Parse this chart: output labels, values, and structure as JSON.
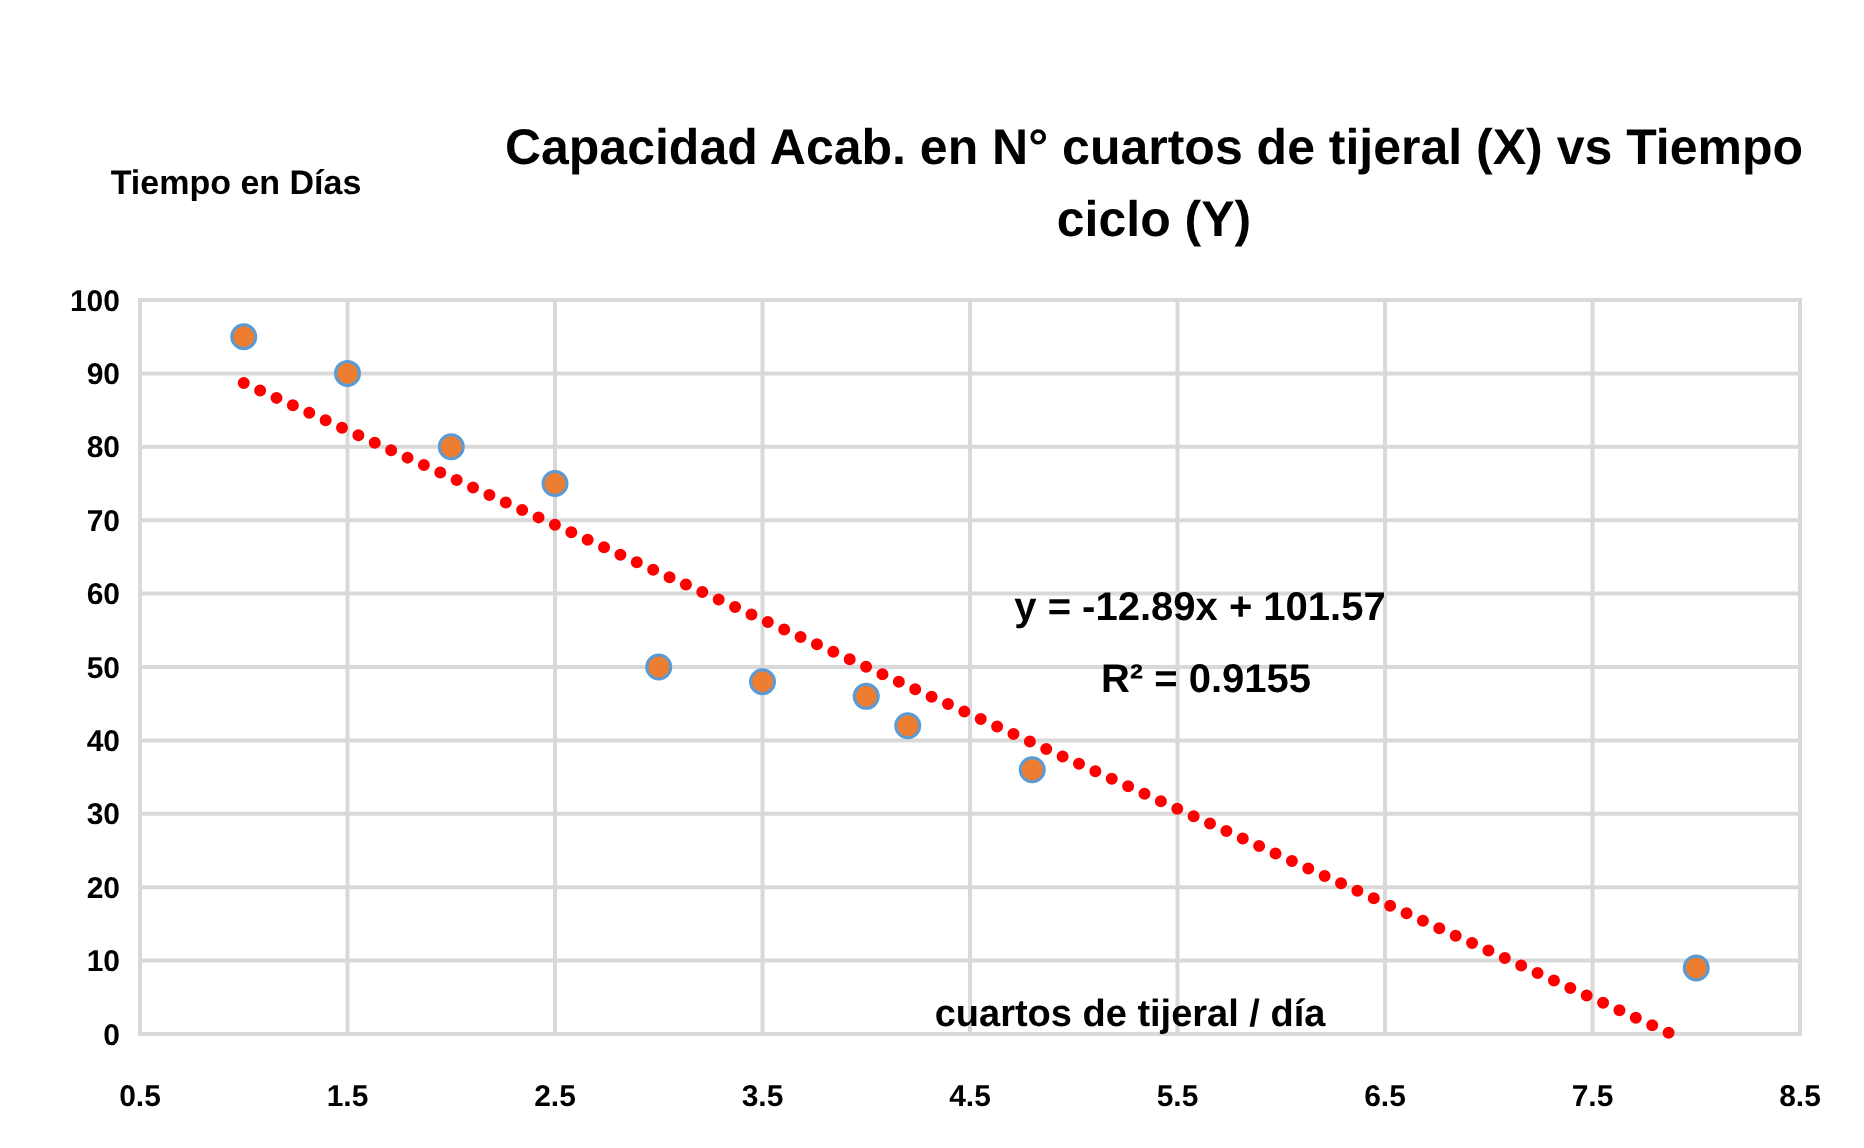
{
  "chart_data": {
    "type": "scatter",
    "title": "Capacidad Acab. en N° cuartos de tijeral (X) vs Tiempo ciclo (Y)",
    "xlabel": "cuartos de tijeral / día",
    "ylabel": "Tiempo en Días",
    "annotations": [
      "y = -12.89x + 101.57",
      "R² = 0.9155"
    ],
    "xlim": [
      0.5,
      8.5
    ],
    "xticks": [
      0.5,
      1.5,
      2.5,
      3.5,
      4.5,
      5.5,
      6.5,
      7.5,
      8.5
    ],
    "ylim": [
      0,
      100
    ],
    "yticks": [
      0,
      10,
      20,
      30,
      40,
      50,
      60,
      70,
      80,
      90,
      100
    ],
    "grid": true,
    "series": [
      {
        "color": "#ed7d31",
        "marker": "circle",
        "x": [
          1,
          1.5,
          2,
          2.5,
          3,
          3.5,
          4,
          4.2,
          4.8,
          8
        ],
        "values": [
          95,
          90,
          80,
          75,
          50,
          48,
          46,
          42,
          36,
          9
        ]
      },
      {
        "type": "line",
        "color": "#ff0000",
        "line_style": "dotted",
        "marker": "none",
        "x": [
          1,
          7.88
        ],
        "values": [
          88.7,
          0
        ]
      }
    ]
  }
}
